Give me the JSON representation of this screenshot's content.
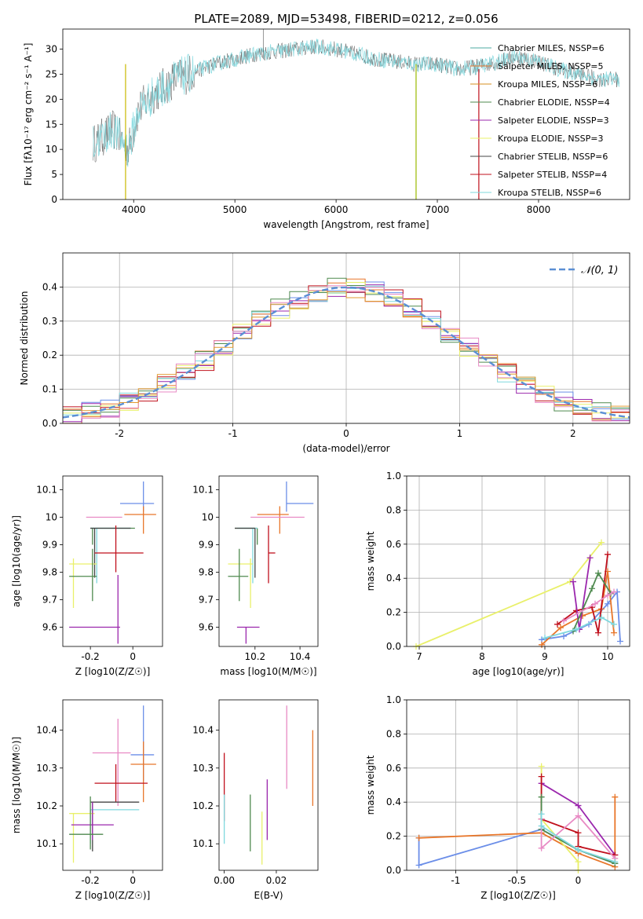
{
  "title": "PLATE=2089, MJD=53498, FIBERID=0212, z=0.056",
  "colors": [
    "#6b8ee8",
    "#e8762a",
    "#d68f1f",
    "#4f8a4f",
    "#9b27ad",
    "#e9f06a",
    "#444444",
    "#c0101c",
    "#7fd8de",
    "#e88ac4"
  ],
  "chart_data": [
    {
      "id": "spectrum",
      "type": "line",
      "xlabel": "wavelength [Angstrom, rest frame]",
      "ylabel": "Flux [fλ10⁻¹⁷ erg cm⁻² s⁻¹ A⁻¹]",
      "xlim": [
        3300,
        8900
      ],
      "ylim": [
        0,
        34
      ],
      "xticks": [
        4000,
        5000,
        6000,
        7000,
        8000
      ],
      "yticks": [
        0,
        5,
        10,
        15,
        20,
        25,
        30
      ],
      "legend_position": "top-right",
      "legend": [
        "Chabrier MILES, N_SSP=6",
        "Salpeter MILES, N_SSP=5",
        "Kroupa MILES, N_SSP=6",
        "Chabrier ELODIE, N_SSP=4",
        "Salpeter ELODIE, N_SSP=3",
        "Kroupa ELODIE, N_SSP=3",
        "Chabrier STELIB, N_SSP=6",
        "Salpeter STELIB, N_SSP=4",
        "Kroupa STELIB, N_SSP=6"
      ],
      "legend_colors": [
        "#4ea8a0",
        "#e8762a",
        "#d68f1f",
        "#4f8a4f",
        "#9b27ad",
        "#e9f06a",
        "#444444",
        "#c0101c",
        "#7fd8de"
      ],
      "continuum_x": [
        3600,
        3800,
        3950,
        4050,
        4200,
        4400,
        4600,
        4800,
        5000,
        5200,
        5400,
        5600,
        5800,
        6000,
        6200,
        6400,
        6600,
        6800,
        7000,
        7200,
        7400,
        7600,
        7800,
        8000,
        8200,
        8400,
        8600,
        8800
      ],
      "continuum_y": [
        11,
        14,
        10,
        18,
        21,
        24,
        25.5,
        27,
        28,
        29,
        29.5,
        30,
        30.5,
        30,
        29,
        28,
        27.5,
        27,
        27,
        26,
        26.5,
        27.5,
        28.5,
        27.5,
        26,
        25,
        24,
        24
      ]
    },
    {
      "id": "residuals",
      "type": "histogram",
      "xlabel": "(data-model)/error",
      "ylabel": "Normed distribution",
      "xlim": [
        -2.5,
        2.5
      ],
      "ylim": [
        0,
        0.5
      ],
      "xticks": [
        -2,
        -1,
        0,
        1,
        2
      ],
      "yticks": [
        0.0,
        0.1,
        0.2,
        0.3,
        0.4
      ],
      "grid": true,
      "legend": "𝒩(0, 1)",
      "legend_position": "top-right",
      "normal_mean": 0,
      "normal_sd": 1
    },
    {
      "id": "z-age",
      "type": "errorbar",
      "xlabel": "Z [log10(Z/Z☉)]",
      "ylabel": "age [log10(age/yr)]",
      "xlim": [
        -0.33,
        0.14
      ],
      "ylim": [
        9.53,
        10.15
      ],
      "xticks": [
        -0.2,
        0.0
      ],
      "yticks": [
        9.6,
        9.7,
        9.8,
        9.9,
        10.0,
        10.1
      ],
      "points": [
        {
          "x": 0.05,
          "y": 10.05,
          "xerr": [
            0.11,
            0.05
          ],
          "yerr": [
            0.03,
            0.08
          ],
          "color": 0
        },
        {
          "x": 0.05,
          "y": 10.01,
          "xerr": [
            0.09,
            0.06
          ],
          "yerr": [
            0.07,
            0.03
          ],
          "color": 1
        },
        {
          "x": -0.07,
          "y": 10.0,
          "xerr": [
            0.15,
            0.02
          ],
          "yerr": [
            0.0,
            0.0
          ],
          "color": 9
        },
        {
          "x": -0.19,
          "y": 9.96,
          "xerr": [
            0.01,
            0.2
          ],
          "yerr": [
            0.06,
            0.0
          ],
          "color": 3
        },
        {
          "x": -0.17,
          "y": 9.96,
          "xerr": [
            0.03,
            0.16
          ],
          "yerr": [
            0.2,
            0.0
          ],
          "color": 8
        },
        {
          "x": -0.18,
          "y": 9.96,
          "xerr": [
            0.02,
            0.17
          ],
          "yerr": [
            0.18,
            0.0
          ],
          "color": 6
        },
        {
          "x": -0.08,
          "y": 9.87,
          "xerr": [
            0.1,
            0.13
          ],
          "yerr": [
            0.07,
            0.1
          ],
          "color": 7
        },
        {
          "x": -0.28,
          "y": 9.83,
          "xerr": [
            0.02,
            0.11
          ],
          "yerr": [
            0.16,
            0.02
          ],
          "color": 5
        },
        {
          "x": -0.19,
          "y": 9.785,
          "xerr": [
            0.11,
            0.02
          ],
          "yerr": [
            0.09,
            0.1
          ],
          "color": 3
        },
        {
          "x": -0.07,
          "y": 9.6,
          "xerr": [
            0.23,
            0.01
          ],
          "yerr": [
            0.06,
            0.19
          ],
          "color": 4
        }
      ]
    },
    {
      "id": "mass-age",
      "type": "errorbar",
      "xlabel": "mass [log10(M/M☉)]",
      "ylabel": "",
      "xlim": [
        10.04,
        10.48
      ],
      "ylim": [
        9.53,
        10.15
      ],
      "xticks": [
        10.2,
        10.4
      ],
      "yticks": [
        9.6,
        9.7,
        9.8,
        9.9,
        10.0,
        10.1
      ],
      "points": [
        {
          "x": 10.34,
          "y": 10.05,
          "xerr": [
            0.0,
            0.12
          ],
          "yerr": [
            0.03,
            0.08
          ],
          "color": 0
        },
        {
          "x": 10.31,
          "y": 10.01,
          "xerr": [
            0.1,
            0.04
          ],
          "yerr": [
            0.07,
            0.03
          ],
          "color": 1
        },
        {
          "x": 10.34,
          "y": 10.0,
          "xerr": [
            0.16,
            0.08
          ],
          "yerr": [
            0.0,
            0.0
          ],
          "color": 9
        },
        {
          "x": 10.21,
          "y": 9.96,
          "xerr": [
            0.1,
            0.0
          ],
          "yerr": [
            0.06,
            0.0
          ],
          "color": 3
        },
        {
          "x": 10.19,
          "y": 9.96,
          "xerr": [
            0.07,
            0.02
          ],
          "yerr": [
            0.2,
            0.0
          ],
          "color": 8
        },
        {
          "x": 10.2,
          "y": 9.96,
          "xerr": [
            0.09,
            0.0
          ],
          "yerr": [
            0.18,
            0.0
          ],
          "color": 6
        },
        {
          "x": 10.26,
          "y": 9.87,
          "xerr": [
            0.0,
            0.03
          ],
          "yerr": [
            0.11,
            0.1
          ],
          "color": 7
        },
        {
          "x": 10.18,
          "y": 9.83,
          "xerr": [
            0.1,
            0.01
          ],
          "yerr": [
            0.16,
            0.02
          ],
          "color": 5
        },
        {
          "x": 10.13,
          "y": 9.785,
          "xerr": [
            0.05,
            0.04
          ],
          "yerr": [
            0.09,
            0.1
          ],
          "color": 3
        },
        {
          "x": 10.16,
          "y": 9.6,
          "xerr": [
            0.04,
            0.06
          ],
          "yerr": [
            0.06,
            0.0
          ],
          "color": 4
        }
      ]
    },
    {
      "id": "age-weight",
      "type": "line",
      "xlabel": "age [log10(age/yr)]",
      "ylabel": "mass weight",
      "xlim": [
        6.8,
        10.35
      ],
      "ylim": [
        0,
        1.0
      ],
      "xticks": [
        7,
        8,
        9,
        10
      ],
      "yticks": [
        0.0,
        0.2,
        0.4,
        0.6,
        0.8,
        1.0
      ],
      "grid": true,
      "series": [
        {
          "color": 5,
          "x": [
            6.95,
            9.4,
            9.9
          ],
          "y": [
            0.0,
            0.38,
            0.61
          ]
        },
        {
          "color": 0,
          "x": [
            8.95,
            9.3,
            9.7,
            10.0,
            10.15,
            10.2
          ],
          "y": [
            0.04,
            0.06,
            0.13,
            0.25,
            0.32,
            0.03
          ]
        },
        {
          "color": 1,
          "x": [
            8.95,
            9.25,
            9.6,
            9.9,
            10.0,
            10.1
          ],
          "y": [
            0.01,
            0.11,
            0.18,
            0.22,
            0.44,
            0.08
          ]
        },
        {
          "color": 7,
          "x": [
            9.2,
            9.5,
            9.75,
            9.85,
            10.0
          ],
          "y": [
            0.13,
            0.21,
            0.23,
            0.08,
            0.54
          ]
        },
        {
          "color": 4,
          "x": [
            9.45,
            9.55,
            9.72
          ],
          "y": [
            0.38,
            0.1,
            0.52
          ]
        },
        {
          "color": 3,
          "x": [
            9.45,
            9.75,
            9.85,
            10.05
          ],
          "y": [
            0.09,
            0.34,
            0.43,
            0.31
          ]
        },
        {
          "color": 8,
          "x": [
            9.0,
            9.5,
            9.9,
            10.1
          ],
          "y": [
            0.05,
            0.1,
            0.17,
            0.13
          ]
        },
        {
          "color": 9,
          "x": [
            9.3,
            9.8,
            10.0,
            10.1
          ],
          "y": [
            0.15,
            0.25,
            0.3,
            0.32
          ]
        }
      ]
    },
    {
      "id": "z-mass",
      "type": "errorbar",
      "xlabel": "Z [log10(Z/Z☉)]",
      "ylabel": "mass [log10(M/M☉)]",
      "xlim": [
        -0.33,
        0.14
      ],
      "ylim": [
        10.03,
        10.48
      ],
      "xticks": [
        -0.2,
        0.0
      ],
      "yticks": [
        10.1,
        10.2,
        10.3,
        10.4
      ],
      "points": [
        {
          "x": 0.05,
          "y": 10.335,
          "xerr": [
            0.06,
            0.05
          ],
          "yerr": [
            0.07,
            0.13
          ],
          "color": 0
        },
        {
          "x": -0.07,
          "y": 10.34,
          "xerr": [
            0.12,
            0.06
          ],
          "yerr": [
            0.14,
            0.09
          ],
          "color": 9
        },
        {
          "x": 0.05,
          "y": 10.31,
          "xerr": [
            0.06,
            0.06
          ],
          "yerr": [
            0.1,
            0.06
          ],
          "color": 1
        },
        {
          "x": -0.08,
          "y": 10.26,
          "xerr": [
            0.1,
            0.15
          ],
          "yerr": [
            0.05,
            0.05
          ],
          "color": 7
        },
        {
          "x": -0.19,
          "y": 10.21,
          "xerr": [
            0.01,
            0.22
          ],
          "yerr": [
            0.13,
            0.0
          ],
          "color": 6
        },
        {
          "x": -0.2,
          "y": 10.19,
          "xerr": [
            0.0,
            0.23
          ],
          "yerr": [
            0.09,
            0.0
          ],
          "color": 8
        },
        {
          "x": -0.28,
          "y": 10.18,
          "xerr": [
            0.02,
            0.1
          ],
          "yerr": [
            0.13,
            0.0
          ],
          "color": 5
        },
        {
          "x": -0.19,
          "y": 10.15,
          "xerr": [
            0.1,
            0.1
          ],
          "yerr": [
            0.04,
            0.06
          ],
          "color": 4
        },
        {
          "x": -0.2,
          "y": 10.125,
          "xerr": [
            0.1,
            0.06
          ],
          "yerr": [
            0.04,
            0.1
          ],
          "color": 3
        }
      ]
    },
    {
      "id": "ebv-mass",
      "type": "errorbar",
      "xlabel": "E(B-V)",
      "ylabel": "",
      "xlim": [
        -0.002,
        0.036
      ],
      "ylim": [
        10.03,
        10.48
      ],
      "xticks": [
        0.0,
        0.02
      ],
      "yticks": [
        10.1,
        10.2,
        10.3,
        10.4
      ],
      "points": [
        {
          "x": 0.0,
          "y": 10.25,
          "yerr": [
            0.09,
            0.09
          ],
          "color": 7
        },
        {
          "x": 0.0,
          "y": 10.16,
          "yerr": [
            0.06,
            0.07
          ],
          "color": 8
        },
        {
          "x": 0.01,
          "y": 10.15,
          "yerr": [
            0.07,
            0.08
          ],
          "color": 3
        },
        {
          "x": 0.0145,
          "y": 10.115,
          "yerr": [
            0.07,
            0.07
          ],
          "color": 5
        },
        {
          "x": 0.0165,
          "y": 10.19,
          "yerr": [
            0.08,
            0.08
          ],
          "color": 4
        },
        {
          "x": 0.024,
          "y": 10.335,
          "yerr": [
            0.09,
            0.13
          ],
          "color": 9
        },
        {
          "x": 0.034,
          "y": 10.3,
          "yerr": [
            0.1,
            0.1
          ],
          "color": 1
        }
      ]
    },
    {
      "id": "z-weight",
      "type": "line",
      "xlabel": "Z [log10(Z/Z☉)]",
      "ylabel": "mass weight",
      "xlim": [
        -1.4,
        0.42
      ],
      "ylim": [
        0,
        1.0
      ],
      "xticks": [
        -1.0,
        -0.5,
        0.0
      ],
      "yticks": [
        0.0,
        0.2,
        0.4,
        0.6,
        0.8,
        1.0
      ],
      "grid": true,
      "series": [
        {
          "color": 0,
          "x": [
            -1.3,
            -1.3,
            -0.3,
            0.0,
            0.3
          ],
          "y": [
            0.19,
            0.03,
            0.24,
            0.12,
            0.04
          ]
        },
        {
          "color": 1,
          "x": [
            -1.3,
            -0.3,
            0.0,
            0.3,
            0.3
          ],
          "y": [
            0.19,
            0.22,
            0.1,
            0.02,
            0.43
          ]
        },
        {
          "color": 5,
          "x": [
            -0.3,
            -0.3,
            0.0,
            0.0
          ],
          "y": [
            0.61,
            0.3,
            0.05,
            0.0
          ]
        },
        {
          "color": 4,
          "x": [
            -0.3,
            0.0,
            0.3
          ],
          "y": [
            0.51,
            0.38,
            0.09
          ]
        },
        {
          "color": 7,
          "x": [
            -0.3,
            -0.3,
            0.0,
            0.0,
            0.3
          ],
          "y": [
            0.55,
            0.3,
            0.22,
            0.14,
            0.09
          ]
        },
        {
          "color": 3,
          "x": [
            -0.3,
            -0.3,
            0.0,
            0.3
          ],
          "y": [
            0.43,
            0.24,
            0.12,
            0.04
          ]
        },
        {
          "color": 9,
          "x": [
            -0.3,
            -0.3,
            0.0,
            0.3
          ],
          "y": [
            0.3,
            0.13,
            0.32,
            0.07
          ]
        },
        {
          "color": 8,
          "x": [
            -0.3,
            -0.3,
            0.0,
            0.3
          ],
          "y": [
            0.33,
            0.26,
            0.12,
            0.05
          ]
        }
      ]
    }
  ]
}
